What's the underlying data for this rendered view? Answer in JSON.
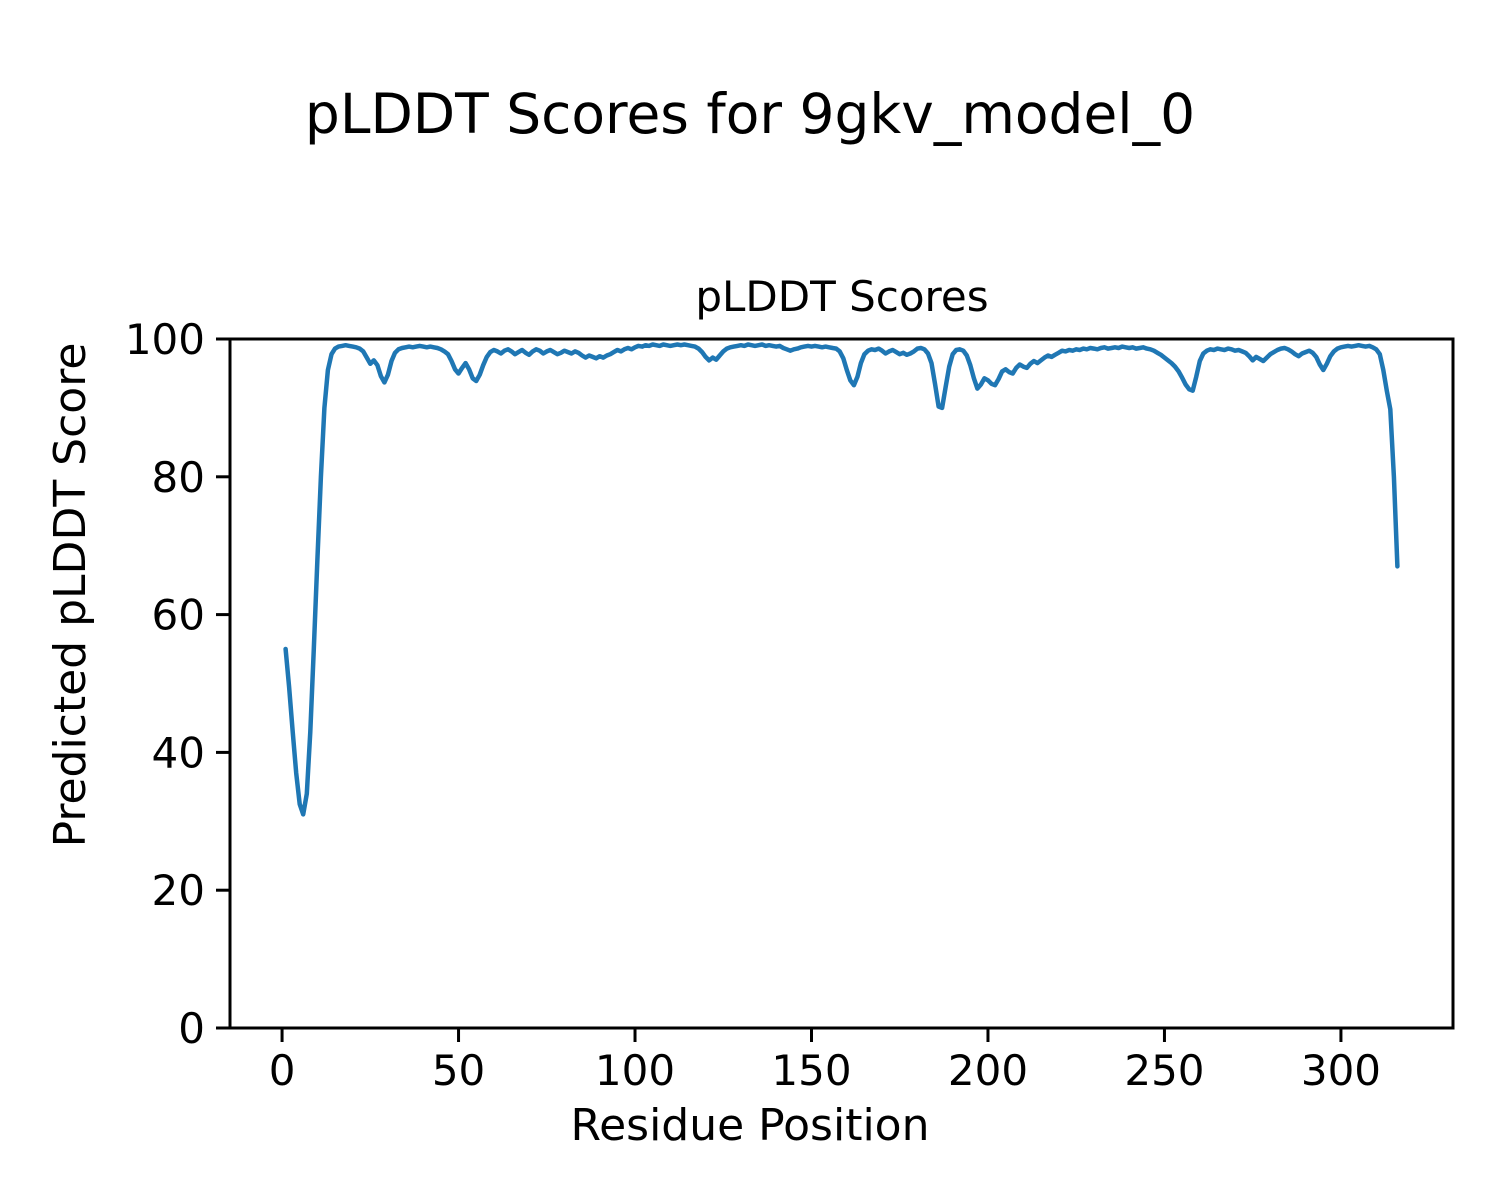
{
  "chart_data": {
    "type": "line",
    "suptitle": "pLDDT Scores for 9gkv_model_0",
    "title": "pLDDT Scores",
    "xlabel": "Residue Position",
    "ylabel": "Predicted pLDDT Score",
    "xlim": [
      -14.75,
      331.75
    ],
    "ylim": [
      0,
      100
    ],
    "x_ticks": [
      0,
      50,
      100,
      150,
      200,
      250,
      300
    ],
    "y_ticks": [
      0,
      20,
      40,
      60,
      80,
      100
    ],
    "grid": false,
    "legend": "none",
    "line_color": "#1f77b4",
    "axes_edge_color": "#000000",
    "background_color": "#ffffff",
    "series": [
      {
        "name": "pLDDT",
        "x_start": 1,
        "x_step": 1,
        "y": [
          55,
          49.5,
          43,
          37,
          32.5,
          31,
          34,
          43,
          55,
          68,
          80,
          90,
          95.5,
          97.8,
          98.6,
          98.9,
          99,
          99.1,
          99,
          98.9,
          98.8,
          98.6,
          98.2,
          97.3,
          96.4,
          96.9,
          96.2,
          94.6,
          93.7,
          94.8,
          96.8,
          98,
          98.5,
          98.7,
          98.8,
          98.9,
          98.8,
          98.9,
          99,
          98.9,
          98.8,
          98.9,
          98.8,
          98.7,
          98.5,
          98.2,
          97.8,
          96.8,
          95.6,
          95,
          95.8,
          96.5,
          95.6,
          94.3,
          93.9,
          94.8,
          96.2,
          97.4,
          98.1,
          98.4,
          98.2,
          97.9,
          98.3,
          98.5,
          98.2,
          97.8,
          98.1,
          98.4,
          98,
          97.7,
          98.2,
          98.5,
          98.3,
          97.9,
          98.2,
          98.4,
          98.1,
          97.8,
          98,
          98.3,
          98.1,
          97.9,
          98.2,
          98,
          97.6,
          97.3,
          97.6,
          97.4,
          97.2,
          97.5,
          97.3,
          97.6,
          97.8,
          98.1,
          98.4,
          98.2,
          98.5,
          98.7,
          98.5,
          98.8,
          99,
          98.9,
          99.1,
          99,
          99.2,
          99.1,
          99,
          99.2,
          99.1,
          99,
          99.1,
          99.2,
          99.1,
          99.2,
          99.1,
          99,
          98.9,
          98.6,
          98.1,
          97.4,
          96.9,
          97.3,
          97,
          97.6,
          98.2,
          98.6,
          98.8,
          98.9,
          99,
          99.1,
          99,
          99.2,
          99.1,
          99,
          99.1,
          99.2,
          99,
          99.1,
          99,
          98.9,
          99,
          98.7,
          98.5,
          98.3,
          98.5,
          98.6,
          98.8,
          98.9,
          99,
          98.9,
          99,
          98.9,
          98.8,
          98.9,
          98.8,
          98.7,
          98.6,
          98.2,
          97.2,
          95.5,
          94,
          93.3,
          94.5,
          96.5,
          97.8,
          98.3,
          98.5,
          98.4,
          98.6,
          98.3,
          97.9,
          98.2,
          98.4,
          98.1,
          97.8,
          98,
          97.7,
          97.9,
          98.2,
          98.6,
          98.7,
          98.5,
          97.9,
          96.5,
          93.5,
          90.2,
          90,
          93,
          96,
          97.8,
          98.4,
          98.5,
          98.3,
          97.6,
          96.2,
          94.3,
          92.8,
          93.4,
          94.3,
          94,
          93.5,
          93.3,
          94.2,
          95.3,
          95.6,
          95.2,
          95,
          95.8,
          96.3,
          96,
          95.8,
          96.4,
          96.8,
          96.5,
          96.9,
          97.3,
          97.6,
          97.4,
          97.7,
          98,
          98.3,
          98.2,
          98.4,
          98.3,
          98.5,
          98.4,
          98.6,
          98.5,
          98.7,
          98.6,
          98.5,
          98.7,
          98.8,
          98.6,
          98.7,
          98.8,
          98.7,
          98.9,
          98.8,
          98.7,
          98.8,
          98.6,
          98.7,
          98.8,
          98.6,
          98.5,
          98.3,
          98,
          97.7,
          97.3,
          96.9,
          96.5,
          96,
          95.3,
          94.4,
          93.4,
          92.7,
          92.5,
          94.5,
          96.8,
          97.9,
          98.3,
          98.5,
          98.4,
          98.6,
          98.5,
          98.4,
          98.6,
          98.5,
          98.3,
          98.4,
          98.2,
          98,
          97.5,
          96.9,
          97.4,
          97.1,
          96.8,
          97.3,
          97.8,
          98.1,
          98.4,
          98.6,
          98.7,
          98.5,
          98.2,
          97.8,
          97.5,
          97.9,
          98.1,
          98.3,
          98,
          97.4,
          96.3,
          95.5,
          96.4,
          97.5,
          98.2,
          98.6,
          98.8,
          98.9,
          99,
          98.9,
          99,
          99.1,
          99,
          98.9,
          99,
          98.8,
          98.5,
          97.8,
          95.5,
          92.5,
          89.8,
          80,
          67
        ]
      }
    ]
  }
}
